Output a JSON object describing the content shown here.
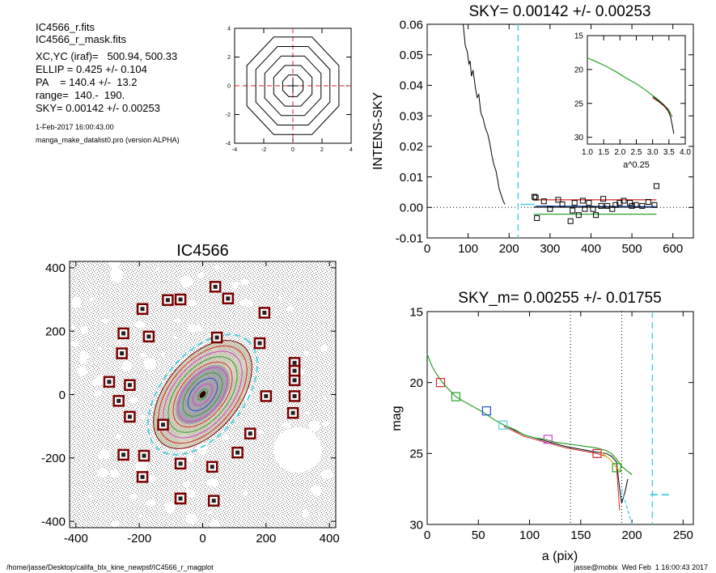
{
  "header": {
    "lines": [
      "IC4566_r.fits",
      "IC4566_r_mask.fits",
      "XC,YC (iraf)=   500.94, 500.33",
      "ELLIP = 0.425 +/- 0.104",
      "PA    = 140.4 +/-  13.2",
      "range=  140.-  190.",
      "SKY= 0.00142 +/- 0.00253"
    ],
    "date": "1-Feb-2017 16:00:43.00",
    "program": "manga_make_datalist0.pro (version ALPHA)"
  },
  "footer": {
    "path": "/home/jasse/Desktop/califa_blx_kine_newpsf/IC4566_r_magplot",
    "stamp": "jasse@mobix  Wed Feb  1 16:00:43 2017"
  },
  "colors": {
    "black": "#000000",
    "red": "#d62728",
    "green": "#2ca02c",
    "blue": "#1f4fc1",
    "cyan": "#4fd0e0",
    "magenta": "#d040d0",
    "dark_red": "#7a0000",
    "grey_noise": "#9a9a9a"
  },
  "chart_data": [
    {
      "id": "psf-contour",
      "type": "contour",
      "title": "",
      "xlim": [
        -4,
        4
      ],
      "ylim": [
        -4,
        4
      ],
      "xticks": [
        -4,
        -2,
        0,
        2,
        4
      ],
      "yticks": [
        -4,
        -2,
        0,
        2,
        4
      ],
      "contour_radii": [
        0.8,
        1.5,
        2.2,
        2.9,
        3.6
      ]
    },
    {
      "id": "intens-sky",
      "type": "line",
      "title": "SKY= 0.00142 +/- 0.00253",
      "xlabel": "",
      "ylabel": "INTENS-SKY",
      "xlim": [
        0,
        650
      ],
      "ylim": [
        -0.01,
        0.06
      ],
      "xticks": [
        0,
        100,
        200,
        300,
        400,
        500,
        600
      ],
      "yticks": [
        -0.01,
        0.0,
        0.01,
        0.02,
        0.03,
        0.04,
        0.05,
        0.06
      ],
      "ytick_labels": [
        "-0.01",
        "0.00",
        "0.01",
        "0.02",
        "0.03",
        "0.04",
        "0.05",
        "0.06"
      ],
      "profile": {
        "x": [
          88,
          93,
          98,
          102,
          105,
          108,
          112,
          118,
          122,
          126,
          131,
          137,
          142,
          148,
          153,
          158,
          163,
          168,
          172,
          176,
          181,
          186,
          190
        ],
        "y": [
          0.06,
          0.053,
          0.051,
          0.047,
          0.048,
          0.043,
          0.045,
          0.039,
          0.036,
          0.037,
          0.031,
          0.029,
          0.026,
          0.024,
          0.021,
          0.017,
          0.014,
          0.012,
          0.009,
          0.006,
          0.004,
          0.002,
          0.001
        ]
      },
      "sky_squares": {
        "x": [
          262,
          265,
          268,
          285,
          300,
          320,
          330,
          350,
          355,
          360,
          370,
          380,
          385,
          395,
          405,
          412,
          425,
          430,
          440,
          452,
          460,
          470,
          480,
          495,
          500,
          510,
          525,
          540,
          555,
          560
        ],
        "y": [
          0.0035,
          0.0032,
          -0.0035,
          0.002,
          -0.0005,
          0.0025,
          0.001,
          -0.0045,
          -0.001,
          0.0015,
          -0.0025,
          0.0022,
          -0.0005,
          0.0015,
          -0.0005,
          -0.0025,
          0.0005,
          0.0028,
          0.0005,
          -0.0005,
          0.0008,
          0.0015,
          0.0022,
          0.0015,
          0.0005,
          0.0008,
          0.0005,
          0.0018,
          0.0008,
          0.007
        ]
      },
      "sky_lines": [
        {
          "x": [
            260,
            560
          ],
          "y": [
            0.0025,
            0.0025
          ],
          "color": "red"
        },
        {
          "x": [
            260,
            560
          ],
          "y": [
            0.0001,
            0.0001
          ],
          "color": "black"
        },
        {
          "x": [
            260,
            560
          ],
          "y": [
            -0.0022,
            -0.0022
          ],
          "color": "green"
        }
      ],
      "blue_segment": {
        "x": [
          265,
          560
        ],
        "y": [
          0.0005,
          0.0003
        ]
      },
      "cyan_vline": 222,
      "zero_line": 0.0
    },
    {
      "id": "inset-r025",
      "type": "line",
      "title": "",
      "xlabel": "a^0.25",
      "ylabel": "",
      "xlim": [
        1.0,
        4.0
      ],
      "ylim": [
        31,
        15
      ],
      "xtick_labels": [
        "1.0",
        "1.5",
        "2.0",
        "2.5",
        "3.0",
        "3.5",
        "4.0"
      ],
      "yticks": [
        15,
        20,
        25,
        30
      ],
      "green": {
        "x": [
          1.0,
          1.3,
          1.6,
          1.9,
          2.2,
          2.5,
          2.8,
          3.1,
          3.3,
          3.5,
          3.6
        ],
        "y": [
          18.3,
          18.9,
          19.6,
          20.4,
          21.3,
          22.1,
          23.1,
          24.2,
          25.0,
          26.0,
          27.0
        ]
      },
      "black": {
        "x": [
          3.0,
          3.2,
          3.35,
          3.45,
          3.55,
          3.6,
          3.65
        ],
        "y": [
          24.0,
          24.7,
          25.3,
          25.8,
          27.0,
          28.2,
          29.5
        ]
      },
      "red": {
        "x": [
          3.0,
          3.2,
          3.35,
          3.45,
          3.55
        ],
        "y": [
          24.2,
          24.8,
          25.4,
          26.0,
          26.6
        ]
      }
    },
    {
      "id": "image-map",
      "type": "scatter",
      "title": "IC4566",
      "xlabel": "",
      "ylabel": "",
      "xlim": [
        -420,
        420
      ],
      "ylim": [
        -420,
        420
      ],
      "xticks": [
        -400,
        -200,
        0,
        200,
        400
      ],
      "yticks": [
        -400,
        -200,
        0,
        200,
        400
      ],
      "masked_stars": {
        "x": [
          40,
          -110,
          -70,
          80,
          -190,
          195,
          -250,
          -170,
          45,
          180,
          -255,
          -295,
          -230,
          -265,
          -230,
          290,
          290,
          290,
          285,
          -250,
          -185,
          -190,
          -70,
          30,
          -70,
          110,
          150,
          -125,
          35,
          -70,
          290,
          200
        ],
        "y": [
          340,
          298,
          300,
          303,
          270,
          258,
          193,
          183,
          180,
          162,
          130,
          40,
          30,
          -20,
          -70,
          100,
          45,
          -5,
          -58,
          -190,
          -193,
          -260,
          -218,
          -228,
          -328,
          -183,
          -123,
          -95,
          -335,
          -328,
          75,
          -5
        ]
      },
      "isophotes": {
        "center": [
          0,
          0
        ],
        "pa_deg": 140.4,
        "ellip": 0.425,
        "semi_major": [
          20,
          40,
          60,
          80,
          100,
          120,
          140,
          160,
          180,
          200,
          222
        ],
        "colors": [
          "green",
          "magenta",
          "blue",
          "green",
          "magenta",
          "red",
          "green",
          "magenta",
          "red",
          "dark_red",
          "cyan"
        ]
      }
    },
    {
      "id": "mag-profile",
      "type": "line",
      "title": "SKY_m=  0.00255 +/- 0.01755",
      "xlabel": "a (pix)",
      "ylabel": "mag",
      "xlim": [
        0,
        260
      ],
      "ylim": [
        30,
        15
      ],
      "xticks": [
        0,
        50,
        100,
        150,
        200,
        250
      ],
      "yticks": [
        15,
        20,
        25,
        30
      ],
      "green": {
        "x": [
          0,
          5,
          10,
          15,
          20,
          28,
          35,
          45,
          55,
          65,
          75,
          85,
          95,
          105,
          115,
          125,
          135,
          145,
          155,
          165,
          175,
          180,
          185,
          190,
          195,
          200
        ],
        "y": [
          18.0,
          18.9,
          19.5,
          20.0,
          20.4,
          21.0,
          21.3,
          21.7,
          22.1,
          22.6,
          23.0,
          23.3,
          23.7,
          23.9,
          24.0,
          24.2,
          24.3,
          24.4,
          24.5,
          24.6,
          24.8,
          25.0,
          25.4,
          25.9,
          26.2,
          26.5
        ]
      },
      "black": {
        "x": [
          75,
          95,
          115,
          135,
          150,
          165,
          175,
          180,
          185,
          188,
          190,
          193,
          196
        ],
        "y": [
          23.0,
          23.7,
          24.1,
          24.5,
          24.7,
          24.9,
          25.0,
          25.2,
          25.6,
          27.5,
          28.5,
          27.8,
          26.8
        ]
      },
      "red": {
        "x": [
          75,
          95,
          115,
          135,
          150,
          165,
          175,
          180,
          185,
          188
        ],
        "y": [
          23.1,
          23.8,
          24.2,
          24.6,
          24.8,
          25.0,
          25.2,
          25.5,
          26.0,
          29.0
        ]
      },
      "yellow": {
        "x": [
          170,
          180,
          185,
          190
        ],
        "y": [
          24.9,
          25.5,
          26.0,
          26.3
        ]
      },
      "cyan_dash": {
        "x": [
          190,
          200
        ],
        "y": [
          27.5,
          30.0
        ]
      },
      "cyan_sky_dash": {
        "x": [
          218,
          240
        ],
        "y": [
          27.9,
          27.9
        ]
      },
      "markers": [
        {
          "x": 13,
          "y": 20.0,
          "color": "red"
        },
        {
          "x": 28,
          "y": 21.0,
          "color": "green"
        },
        {
          "x": 58,
          "y": 22.0,
          "color": "blue"
        },
        {
          "x": 74,
          "y": 23.0,
          "color": "cyan"
        },
        {
          "x": 118,
          "y": 24.0,
          "color": "magenta"
        },
        {
          "x": 166,
          "y": 25.0,
          "color": "red"
        },
        {
          "x": 185,
          "y": 26.0,
          "color": "green"
        }
      ],
      "dotted_vlines": [
        140,
        190
      ],
      "cyan_vline": 220
    }
  ]
}
